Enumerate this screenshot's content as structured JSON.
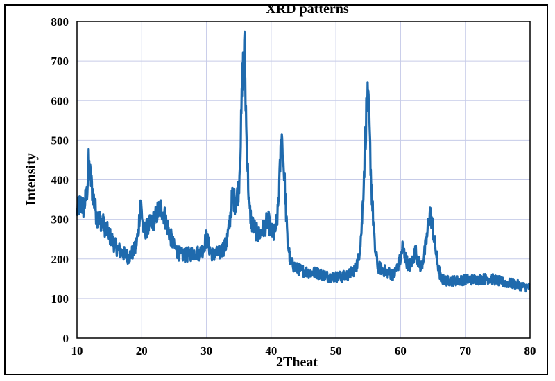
{
  "chart_data": {
    "type": "line",
    "title": "XRD patterns",
    "xlabel": "2Theat",
    "ylabel": "Intensity",
    "xlim": [
      10,
      80
    ],
    "ylim": [
      0,
      800
    ],
    "xticks": [
      "10",
      "20",
      "30",
      "40",
      "50",
      "60",
      "70",
      "80"
    ],
    "yticks": [
      "0",
      "100",
      "200",
      "300",
      "400",
      "500",
      "600",
      "700",
      "800"
    ],
    "grid": true,
    "legend": "none",
    "line_color": "#1f6aad",
    "grid_color": "#c6cbe8",
    "series": [
      {
        "x": [
          10,
          10.5,
          11,
          11.5,
          11.8,
          12.3,
          13,
          14,
          15,
          16,
          17,
          18,
          19,
          19.5,
          19.8,
          20.3,
          21,
          22,
          22.5,
          23,
          23.5,
          24,
          25,
          26,
          27,
          28,
          29,
          29.5,
          30,
          30.5,
          31,
          32,
          33,
          33.5,
          34,
          34.5,
          35,
          35.3,
          35.6,
          35.9,
          36.2,
          36.6,
          37,
          38,
          39,
          39.5,
          40,
          40.5,
          41,
          41.3,
          41.6,
          42,
          42.5,
          43,
          44,
          45,
          46,
          47,
          48,
          49,
          50,
          51,
          52,
          53,
          53.5,
          54,
          54.5,
          54.8,
          55.1,
          55.5,
          56,
          56.5,
          57,
          58,
          59,
          59.5,
          60,
          60.3,
          60.8,
          61.3,
          61.8,
          62.3,
          62.8,
          63.2,
          63.7,
          64.2,
          64.5,
          64.8,
          65.2,
          65.7,
          66.2,
          67,
          68,
          69,
          70,
          71,
          72,
          73,
          74,
          75,
          76,
          77,
          78,
          79,
          80
        ],
        "y": [
          320,
          340,
          330,
          360,
          440,
          380,
          310,
          290,
          260,
          230,
          215,
          205,
          225,
          270,
          350,
          270,
          280,
          300,
          320,
          330,
          310,
          280,
          230,
          210,
          210,
          215,
          215,
          225,
          255,
          225,
          210,
          215,
          235,
          280,
          360,
          340,
          380,
          500,
          680,
          720,
          500,
          330,
          290,
          260,
          280,
          300,
          270,
          260,
          310,
          400,
          520,
          420,
          250,
          190,
          175,
          170,
          165,
          165,
          160,
          155,
          155,
          155,
          160,
          175,
          200,
          280,
          480,
          610,
          560,
          380,
          230,
          180,
          175,
          165,
          160,
          180,
          200,
          230,
          200,
          180,
          195,
          220,
          190,
          180,
          215,
          270,
          320,
          300,
          250,
          190,
          150,
          145,
          145,
          145,
          148,
          148,
          148,
          150,
          150,
          145,
          140,
          138,
          135,
          130,
          128
        ]
      }
    ]
  }
}
